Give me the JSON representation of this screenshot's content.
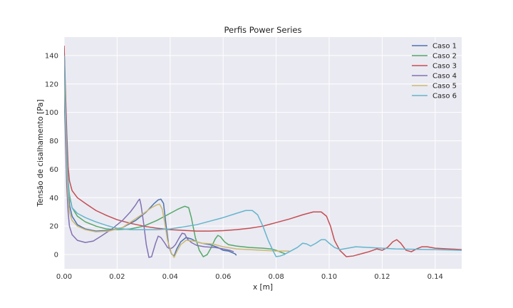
{
  "chart_data": {
    "type": "line",
    "title": "Perfis Power Series",
    "xlabel": "x [m]",
    "ylabel": "Tensão de cisalhamento [Pa]",
    "xlim": [
      0,
      0.15
    ],
    "ylim": [
      -10,
      153
    ],
    "xticks": [
      0,
      0.02,
      0.04,
      0.06,
      0.08,
      0.1,
      0.12,
      0.14
    ],
    "xtick_labels": [
      "0.00",
      "0.02",
      "0.04",
      "0.06",
      "0.08",
      "0.10",
      "0.12",
      "0.14"
    ],
    "yticks": [
      0,
      20,
      40,
      60,
      80,
      100,
      120,
      140
    ],
    "ytick_labels": [
      "0",
      "20",
      "40",
      "60",
      "80",
      "100",
      "120",
      "140"
    ],
    "grid": true,
    "legend_position": "top-right",
    "series": [
      {
        "name": "Caso 1",
        "color": "#4c72b0",
        "points": [
          [
            0.0,
            130
          ],
          [
            0.0005,
            100
          ],
          [
            0.001,
            65
          ],
          [
            0.0015,
            45
          ],
          [
            0.002,
            35
          ],
          [
            0.003,
            27
          ],
          [
            0.005,
            21
          ],
          [
            0.008,
            18
          ],
          [
            0.012,
            16.5
          ],
          [
            0.017,
            17
          ],
          [
            0.022,
            19
          ],
          [
            0.027,
            24
          ],
          [
            0.031,
            30
          ],
          [
            0.034,
            36
          ],
          [
            0.0355,
            38.5
          ],
          [
            0.0365,
            39
          ],
          [
            0.0375,
            36
          ],
          [
            0.0385,
            20
          ],
          [
            0.0395,
            6
          ],
          [
            0.0405,
            0.5
          ],
          [
            0.0415,
            -1
          ],
          [
            0.0425,
            4
          ],
          [
            0.044,
            9
          ],
          [
            0.046,
            12
          ],
          [
            0.048,
            11
          ],
          [
            0.05,
            9
          ],
          [
            0.052,
            8
          ],
          [
            0.055,
            7
          ],
          [
            0.058,
            5
          ],
          [
            0.06,
            3
          ],
          [
            0.062,
            2.5
          ],
          [
            0.0645,
            0.5
          ],
          [
            0.065,
            -0.5
          ]
        ]
      },
      {
        "name": "Caso 2",
        "color": "#55a868",
        "points": [
          [
            0.0,
            145
          ],
          [
            0.0005,
            110
          ],
          [
            0.001,
            75
          ],
          [
            0.0015,
            52
          ],
          [
            0.002,
            42
          ],
          [
            0.003,
            33
          ],
          [
            0.005,
            27
          ],
          [
            0.008,
            23
          ],
          [
            0.012,
            20
          ],
          [
            0.016,
            18
          ],
          [
            0.02,
            17.5
          ],
          [
            0.025,
            18
          ],
          [
            0.03,
            20
          ],
          [
            0.035,
            24
          ],
          [
            0.04,
            29
          ],
          [
            0.043,
            32
          ],
          [
            0.0455,
            34
          ],
          [
            0.047,
            33
          ],
          [
            0.048,
            26
          ],
          [
            0.0495,
            12
          ],
          [
            0.051,
            3
          ],
          [
            0.0525,
            -1.5
          ],
          [
            0.054,
            0
          ],
          [
            0.0555,
            5
          ],
          [
            0.057,
            11
          ],
          [
            0.058,
            13.5
          ],
          [
            0.059,
            12.5
          ],
          [
            0.0605,
            9
          ],
          [
            0.062,
            7
          ],
          [
            0.065,
            6
          ],
          [
            0.07,
            5
          ],
          [
            0.075,
            4.5
          ],
          [
            0.078,
            4
          ],
          [
            0.08,
            3
          ],
          [
            0.082,
            1.5
          ],
          [
            0.0835,
            0.5
          ]
        ]
      },
      {
        "name": "Caso 3",
        "color": "#c44e52",
        "points": [
          [
            0.0,
            147
          ],
          [
            0.0005,
            115
          ],
          [
            0.001,
            85
          ],
          [
            0.0015,
            62
          ],
          [
            0.002,
            52
          ],
          [
            0.003,
            45
          ],
          [
            0.005,
            40
          ],
          [
            0.008,
            36
          ],
          [
            0.012,
            31
          ],
          [
            0.016,
            27.5
          ],
          [
            0.02,
            24.5
          ],
          [
            0.025,
            22
          ],
          [
            0.03,
            20
          ],
          [
            0.035,
            18.5
          ],
          [
            0.04,
            17.5
          ],
          [
            0.045,
            17
          ],
          [
            0.05,
            16.5
          ],
          [
            0.055,
            16.5
          ],
          [
            0.06,
            16.8
          ],
          [
            0.065,
            17.5
          ],
          [
            0.07,
            18.5
          ],
          [
            0.075,
            20
          ],
          [
            0.08,
            22.5
          ],
          [
            0.085,
            25
          ],
          [
            0.09,
            28
          ],
          [
            0.094,
            30
          ],
          [
            0.097,
            30
          ],
          [
            0.099,
            27
          ],
          [
            0.1005,
            20
          ],
          [
            0.102,
            10
          ],
          [
            0.104,
            3
          ],
          [
            0.1065,
            -1.5
          ],
          [
            0.109,
            -1
          ],
          [
            0.112,
            0.5
          ],
          [
            0.115,
            2
          ],
          [
            0.118,
            4
          ],
          [
            0.12,
            3
          ],
          [
            0.122,
            5
          ],
          [
            0.124,
            9
          ],
          [
            0.1255,
            10.5
          ],
          [
            0.127,
            8
          ],
          [
            0.129,
            3
          ],
          [
            0.131,
            2
          ],
          [
            0.133,
            4
          ],
          [
            0.135,
            5.5
          ],
          [
            0.137,
            5.5
          ],
          [
            0.14,
            4.5
          ],
          [
            0.145,
            4
          ],
          [
            0.15,
            3.5
          ]
        ]
      },
      {
        "name": "Caso 4",
        "color": "#8172b2",
        "points": [
          [
            0.0,
            115
          ],
          [
            0.0005,
            80
          ],
          [
            0.001,
            48
          ],
          [
            0.0015,
            30
          ],
          [
            0.002,
            20
          ],
          [
            0.003,
            14
          ],
          [
            0.005,
            10
          ],
          [
            0.008,
            8.5
          ],
          [
            0.011,
            9.5
          ],
          [
            0.014,
            13
          ],
          [
            0.018,
            18
          ],
          [
            0.022,
            24
          ],
          [
            0.025,
            30
          ],
          [
            0.027,
            35
          ],
          [
            0.028,
            38
          ],
          [
            0.0285,
            39
          ],
          [
            0.029,
            35
          ],
          [
            0.03,
            22
          ],
          [
            0.031,
            7
          ],
          [
            0.032,
            -2
          ],
          [
            0.033,
            -1.5
          ],
          [
            0.0345,
            8
          ],
          [
            0.0355,
            13
          ],
          [
            0.0365,
            12
          ],
          [
            0.038,
            8
          ],
          [
            0.039,
            5
          ],
          [
            0.04,
            4
          ],
          [
            0.041,
            5
          ],
          [
            0.042,
            7
          ],
          [
            0.0435,
            12
          ],
          [
            0.0445,
            15
          ],
          [
            0.0455,
            14.5
          ],
          [
            0.0465,
            11
          ],
          [
            0.048,
            8.5
          ],
          [
            0.05,
            6.5
          ],
          [
            0.053,
            5.5
          ],
          [
            0.057,
            5
          ],
          [
            0.06,
            4
          ],
          [
            0.0625,
            3
          ],
          [
            0.064,
            2
          ]
        ]
      },
      {
        "name": "Caso 5",
        "color": "#ccb974",
        "points": [
          [
            0.0,
            125
          ],
          [
            0.0005,
            95
          ],
          [
            0.001,
            62
          ],
          [
            0.0015,
            40
          ],
          [
            0.002,
            30
          ],
          [
            0.003,
            24
          ],
          [
            0.005,
            20
          ],
          [
            0.008,
            17.5
          ],
          [
            0.012,
            16
          ],
          [
            0.017,
            16.5
          ],
          [
            0.022,
            19
          ],
          [
            0.026,
            24
          ],
          [
            0.03,
            29
          ],
          [
            0.033,
            33
          ],
          [
            0.035,
            35
          ],
          [
            0.036,
            35.5
          ],
          [
            0.037,
            32
          ],
          [
            0.038,
            22
          ],
          [
            0.039,
            10
          ],
          [
            0.0405,
            1
          ],
          [
            0.0415,
            -2
          ],
          [
            0.0425,
            2
          ],
          [
            0.044,
            7
          ],
          [
            0.046,
            10
          ],
          [
            0.049,
            9.5
          ],
          [
            0.052,
            8
          ],
          [
            0.056,
            7.5
          ],
          [
            0.06,
            5.5
          ],
          [
            0.065,
            4
          ],
          [
            0.07,
            3.5
          ],
          [
            0.075,
            3
          ],
          [
            0.08,
            2.5
          ],
          [
            0.085,
            2.5
          ]
        ]
      },
      {
        "name": "Caso 6",
        "color": "#64b5cd",
        "points": [
          [
            0.0,
            140
          ],
          [
            0.0005,
            105
          ],
          [
            0.001,
            72
          ],
          [
            0.0015,
            50
          ],
          [
            0.002,
            40
          ],
          [
            0.003,
            33
          ],
          [
            0.005,
            29
          ],
          [
            0.008,
            26
          ],
          [
            0.012,
            23
          ],
          [
            0.016,
            20.5
          ],
          [
            0.02,
            18.5
          ],
          [
            0.025,
            17.5
          ],
          [
            0.03,
            17.5
          ],
          [
            0.035,
            17.5
          ],
          [
            0.04,
            18
          ],
          [
            0.045,
            19.5
          ],
          [
            0.05,
            21
          ],
          [
            0.055,
            23.5
          ],
          [
            0.06,
            26
          ],
          [
            0.065,
            29
          ],
          [
            0.0685,
            31
          ],
          [
            0.071,
            31
          ],
          [
            0.073,
            28
          ],
          [
            0.075,
            20
          ],
          [
            0.077,
            10
          ],
          [
            0.079,
            2
          ],
          [
            0.08,
            -1.5
          ],
          [
            0.0815,
            -1
          ],
          [
            0.083,
            0
          ],
          [
            0.085,
            2
          ],
          [
            0.088,
            5
          ],
          [
            0.09,
            8
          ],
          [
            0.0915,
            7.5
          ],
          [
            0.093,
            6
          ],
          [
            0.095,
            8
          ],
          [
            0.097,
            10.5
          ],
          [
            0.0985,
            10.5
          ],
          [
            0.1,
            8
          ],
          [
            0.102,
            5
          ],
          [
            0.104,
            3.5
          ],
          [
            0.107,
            4.5
          ],
          [
            0.11,
            5.5
          ],
          [
            0.115,
            5
          ],
          [
            0.12,
            4.5
          ],
          [
            0.125,
            4
          ],
          [
            0.13,
            3.8
          ],
          [
            0.14,
            3.5
          ],
          [
            0.15,
            3
          ]
        ]
      }
    ]
  }
}
